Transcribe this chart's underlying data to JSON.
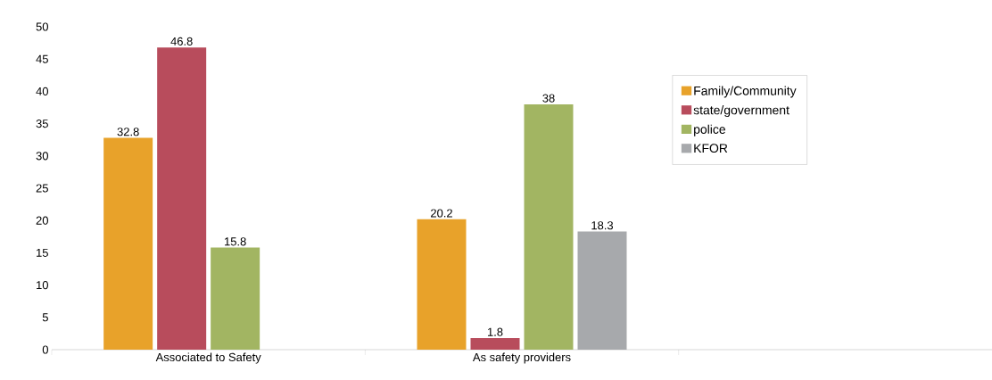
{
  "chart_data": {
    "type": "bar",
    "categories": [
      "Associated to Safety",
      "As safety providers",
      null
    ],
    "series": [
      {
        "name": "Family/Community",
        "color": "#e8a22a",
        "values": [
          32.8,
          20.2,
          null
        ]
      },
      {
        "name": "state/government",
        "color": "#b84c5c",
        "values": [
          46.8,
          1.8,
          null
        ]
      },
      {
        "name": "police",
        "color": "#a2b562",
        "values": [
          15.8,
          38,
          null
        ]
      },
      {
        "name": "KFOR",
        "color": "#a7a9ac",
        "values": [
          null,
          18.3,
          null
        ]
      }
    ],
    "ylim": [
      0,
      50
    ],
    "yticks": [
      0,
      5,
      10,
      15,
      20,
      25,
      30,
      35,
      40,
      45,
      50
    ],
    "data_labels": true,
    "legend": "right",
    "grid": false
  }
}
